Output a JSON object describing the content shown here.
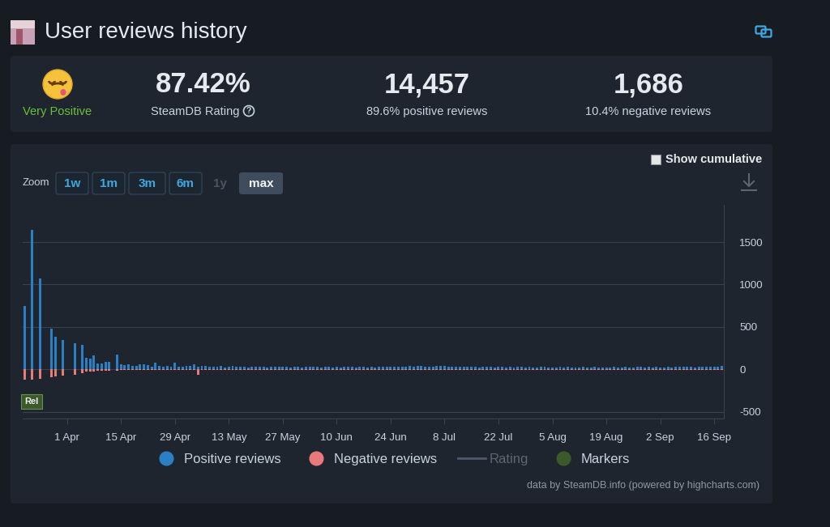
{
  "header": {
    "title": "User reviews history"
  },
  "summary": {
    "verdict": "Very Positive",
    "rating": {
      "value": "87.42%",
      "label": "SteamDB Rating",
      "info_icon": "?"
    },
    "positive": {
      "value": "14,457",
      "label": "89.6% positive reviews"
    },
    "negative": {
      "value": "1,686",
      "label": "10.4% negative reviews"
    }
  },
  "controls": {
    "show_cumulative": "Show cumulative",
    "checked": false,
    "zoom_label": "Zoom",
    "zoom_options": [
      "1w",
      "1m",
      "3m",
      "6m",
      "1y",
      "max"
    ],
    "disabled": "1y",
    "selected": "max"
  },
  "chart_data": {
    "type": "bar",
    "categories": [
      null,
      null,
      null,
      null,
      null,
      null,
      null,
      null,
      null,
      null,
      null,
      "1 Apr",
      null,
      null,
      null,
      null,
      null,
      null,
      null,
      null,
      null,
      null,
      null,
      null,
      null,
      "15 Apr",
      null,
      null,
      null,
      null,
      null,
      null,
      null,
      null,
      null,
      null,
      null,
      null,
      null,
      "29 Apr",
      null,
      null,
      null,
      null,
      null,
      null,
      null,
      null,
      null,
      null,
      null,
      null,
      null,
      "13 May",
      null,
      null,
      null,
      null,
      null,
      null,
      null,
      null,
      null,
      null,
      null,
      null,
      null,
      "27 May",
      null,
      null,
      null,
      null,
      null,
      null,
      null,
      null,
      null,
      null,
      null,
      null,
      null,
      "10 Jun",
      null,
      null,
      null,
      null,
      null,
      null,
      null,
      null,
      null,
      null,
      null,
      null,
      null,
      "24 Jun",
      null,
      null,
      null,
      null,
      null,
      null,
      null,
      null,
      null,
      null,
      null,
      null,
      null,
      "8 Jul",
      null,
      null,
      null,
      null,
      null,
      null,
      null,
      null,
      null,
      null,
      null,
      null,
      null,
      "22 Jul",
      null,
      null,
      null,
      null,
      null,
      null,
      null,
      null,
      null,
      null,
      null,
      null,
      null,
      "5 Aug",
      null,
      null,
      null,
      null,
      null,
      null,
      null,
      null,
      null,
      null,
      null,
      null,
      null,
      "19 Aug",
      null,
      null,
      null,
      null,
      null,
      null,
      null,
      null,
      null,
      null,
      null,
      null,
      null,
      "2 Sep",
      null,
      null,
      null,
      null,
      null,
      null,
      null,
      null,
      null,
      null,
      null,
      null,
      null,
      "16 Sep",
      null,
      null
    ],
    "series": [
      {
        "name": "Positive reviews",
        "color": "#2b7fc4",
        "values": [
          745,
          0,
          1640,
          0,
          1075,
          0,
          0,
          480,
          380,
          0,
          350,
          0,
          0,
          310,
          0,
          290,
          140,
          130,
          160,
          70,
          70,
          85,
          85,
          0,
          170,
          55,
          50,
          60,
          45,
          40,
          55,
          60,
          50,
          35,
          75,
          40,
          30,
          45,
          35,
          80,
          30,
          35,
          40,
          45,
          55,
          30,
          45,
          40,
          30,
          35,
          30,
          40,
          25,
          35,
          38,
          30,
          28,
          30,
          25,
          32,
          30,
          28,
          33,
          26,
          30,
          35,
          27,
          29,
          31,
          25,
          28,
          30,
          26,
          32,
          29,
          27,
          30,
          25,
          28,
          31,
          26,
          29,
          24,
          27,
          30,
          28,
          25,
          31,
          27,
          26,
          29,
          25,
          28,
          32,
          30,
          27,
          35,
          30,
          28,
          33,
          36,
          31,
          38,
          42,
          35,
          30,
          33,
          40,
          45,
          37,
          32,
          30,
          28,
          31,
          34,
          29,
          27,
          30,
          26,
          28,
          30,
          27,
          25,
          29,
          31,
          26,
          28,
          24,
          27,
          30,
          25,
          28,
          26,
          23,
          27,
          29,
          25,
          22,
          26,
          28,
          24,
          27,
          25,
          22,
          26,
          28,
          23,
          25,
          27,
          24,
          22,
          26,
          24,
          28,
          25,
          23,
          27,
          24,
          26,
          30,
          28,
          25,
          27,
          24,
          29,
          26,
          23,
          27,
          25,
          28,
          30,
          27,
          32,
          29,
          26,
          31,
          28,
          33,
          35,
          30,
          34,
          38
        ]
      },
      {
        "name": "Negative reviews",
        "color": "#e87a7a",
        "values": [
          -120,
          0,
          -120,
          0,
          -110,
          0,
          0,
          -90,
          -80,
          0,
          -70,
          0,
          0,
          -60,
          0,
          -45,
          -30,
          -25,
          -25,
          -20,
          -15,
          -15,
          -15,
          0,
          -20,
          -12,
          -10,
          -12,
          -9,
          -10,
          -11,
          -8,
          -9,
          -10,
          -7,
          -8,
          -9,
          -6,
          -8,
          -10,
          -7,
          -6,
          -8,
          -6,
          -6,
          -60,
          -5,
          -8,
          -6,
          -5,
          -6,
          -7,
          -5,
          -6,
          -5,
          -4,
          -6,
          -5,
          -4,
          -5,
          -4,
          -5,
          -3,
          -4,
          -5,
          -4,
          -3,
          -5,
          -4,
          -3,
          -4,
          -3,
          -5,
          -4,
          -3,
          -4,
          -5,
          -3,
          -4,
          -4,
          -3,
          -4,
          -5,
          -3,
          -4,
          -3,
          -4,
          -5,
          -3,
          -4,
          -4,
          -3,
          -4,
          -5,
          -3,
          -4,
          -4,
          -3,
          -5,
          -4,
          -5,
          -4,
          -6,
          -5,
          -4,
          -3,
          -5,
          -6,
          -5,
          -4,
          -4,
          -3,
          -4,
          -3,
          -5,
          -4,
          -3,
          -4,
          -3,
          -4,
          -3,
          -4,
          -3,
          -5,
          -4,
          -3,
          -4,
          -3,
          -4,
          -3,
          -4,
          -3,
          -3,
          -4,
          -3,
          -4,
          -3,
          -3,
          -4,
          -3,
          -3,
          -4,
          -3,
          -3,
          -4,
          -3,
          -4,
          -3,
          -3,
          -4,
          -3,
          -3,
          -4,
          -3,
          -4,
          -3,
          -3,
          -4,
          -3,
          -4,
          -4,
          -3,
          -3,
          -4,
          -3,
          -4,
          -3,
          -3,
          -4,
          -3,
          -4,
          -3,
          -4,
          -5,
          -3,
          -4,
          -4,
          -5,
          -4,
          -3,
          -4,
          -5
        ]
      },
      {
        "name": "Rating",
        "type": "line",
        "color": "#4b5a6b"
      },
      {
        "name": "Markers",
        "type": "flag",
        "color": "#3b5a2c"
      }
    ],
    "annotations": [
      {
        "text": "Rel",
        "x": 0,
        "y": -380,
        "series": "Markers"
      }
    ],
    "ylim": [
      -580,
      1940
    ],
    "yticks": [
      -500,
      0,
      500,
      1000,
      1500
    ],
    "grid": true,
    "legend": "bottom"
  },
  "footer": "data by SteamDB.info (powered by highcharts.com)"
}
